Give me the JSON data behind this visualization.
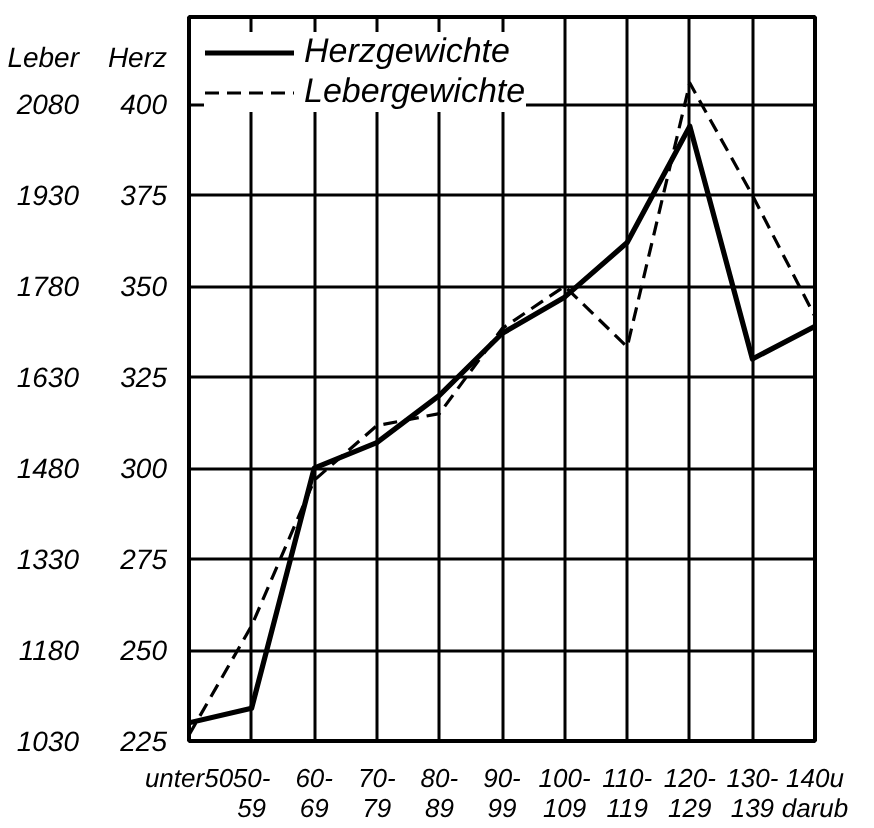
{
  "chart_data": {
    "type": "line",
    "ylabel": "Leber",
    "y2label": "Herz",
    "categories": [
      "unter50",
      "50-\n59",
      "60-\n69",
      "70-\n79",
      "80-\n89",
      "90-\n99",
      "100-\n109",
      "110-\n119",
      "120-\n129",
      "130-\n139",
      "140u\ndarub"
    ],
    "series": [
      {
        "name": "Herzgewichte",
        "color": "#000000",
        "line_style": "solid",
        "axis": "y2",
        "values": [
          230,
          234,
          300,
          307,
          320,
          337,
          347,
          362,
          394,
          330,
          339
        ]
      },
      {
        "name": "Lebergewichte",
        "color": "#000000",
        "line_style": "dashed",
        "values": [
          1040,
          1220,
          1460,
          1550,
          1570,
          1710,
          1780,
          1680,
          2115,
          1930,
          1730
        ]
      }
    ],
    "ylim": [
      1030,
      2224
    ],
    "yticks": [
      1030,
      1180,
      1330,
      1480,
      1630,
      1780,
      1930,
      2080
    ],
    "y2lim": [
      225,
      424
    ],
    "y2ticks": [
      225,
      250,
      275,
      300,
      325,
      350,
      375,
      400
    ],
    "grid": true,
    "legend": "top left"
  }
}
